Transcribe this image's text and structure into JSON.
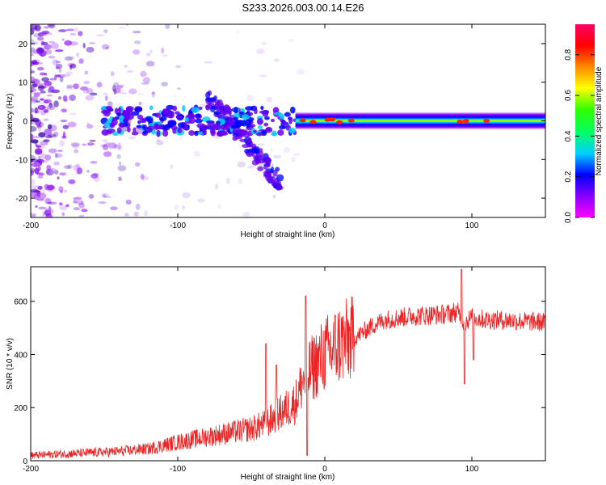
{
  "title": "S233.2026.003.00.14.E26",
  "chart_data": [
    {
      "type": "heatmap",
      "title": "S233.2026.003.00.14.E26",
      "xlabel": "Height of straight line (km)",
      "ylabel": "Frequency (Hz)",
      "xlim": [
        -200,
        150
      ],
      "ylim": [
        -25,
        25
      ],
      "xticks": [
        -200,
        -100,
        0,
        100
      ],
      "xtick_labels": [
        "-200",
        "-100",
        "0",
        "100"
      ],
      "yticks": [
        -20,
        -10,
        0,
        10,
        20
      ],
      "ytick_labels": [
        "-20",
        "-10",
        "0",
        "10",
        "20"
      ],
      "colorbar": {
        "label": "Normalized spectral amplitude",
        "range": [
          0,
          0.95
        ],
        "ticks": [
          0.0,
          0.2,
          0.4,
          0.6,
          0.8
        ],
        "tick_labels": [
          "0.0",
          "0.2",
          "0.4",
          "0.6",
          "0.8"
        ],
        "colormap": [
          "#ff00ff",
          "#8800ff",
          "#0000ff",
          "#00ccff",
          "#00ff66",
          "#33ff00",
          "#ffff00",
          "#ff8800",
          "#ff0000",
          "#ff0066"
        ]
      },
      "features": {
        "band_center_hz": 0,
        "band_onset_km": -20,
        "noise_region_km": [
          -200,
          -20
        ],
        "ridge_km": [
          -80,
          -30
        ],
        "ridge_freq_hz": [
          6,
          -16
        ],
        "hotspots_km": [
          -15,
          -8,
          2,
          5,
          10,
          18,
          92,
          96,
          110
        ]
      }
    },
    {
      "type": "line",
      "xlabel": "Height of straight line (km)",
      "ylabel": "SNR (10 * v/v)",
      "xlim": [
        -200,
        150
      ],
      "ylim": [
        0,
        730
      ],
      "xticks": [
        -200,
        -100,
        0,
        100
      ],
      "xtick_labels": [
        "-200",
        "-100",
        "0",
        "100"
      ],
      "yticks": [
        0,
        200,
        400,
        600
      ],
      "ytick_labels": [
        "0",
        "200",
        "400",
        "600"
      ],
      "color": "#ee2222",
      "series": [
        {
          "name": "SNR",
          "x": [
            -200,
            -180,
            -160,
            -140,
            -120,
            -100,
            -80,
            -60,
            -50,
            -40,
            -30,
            -20,
            -15,
            -10,
            0,
            10,
            20,
            30,
            40,
            60,
            80,
            90,
            95,
            100,
            110,
            120,
            150
          ],
          "values": [
            20,
            25,
            30,
            35,
            45,
            70,
            90,
            110,
            120,
            140,
            180,
            220,
            300,
            340,
            400,
            440,
            460,
            500,
            530,
            545,
            550,
            560,
            520,
            540,
            530,
            530,
            520
          ],
          "spikes": [
            {
              "x": -40,
              "value": 440
            },
            {
              "x": -33,
              "value": 360
            },
            {
              "x": -13,
              "value": 620
            },
            {
              "x": -12,
              "value": 20
            },
            {
              "x": 93,
              "value": 720
            },
            {
              "x": 95,
              "value": 290
            },
            {
              "x": 101,
              "value": 380
            }
          ]
        }
      ]
    }
  ]
}
